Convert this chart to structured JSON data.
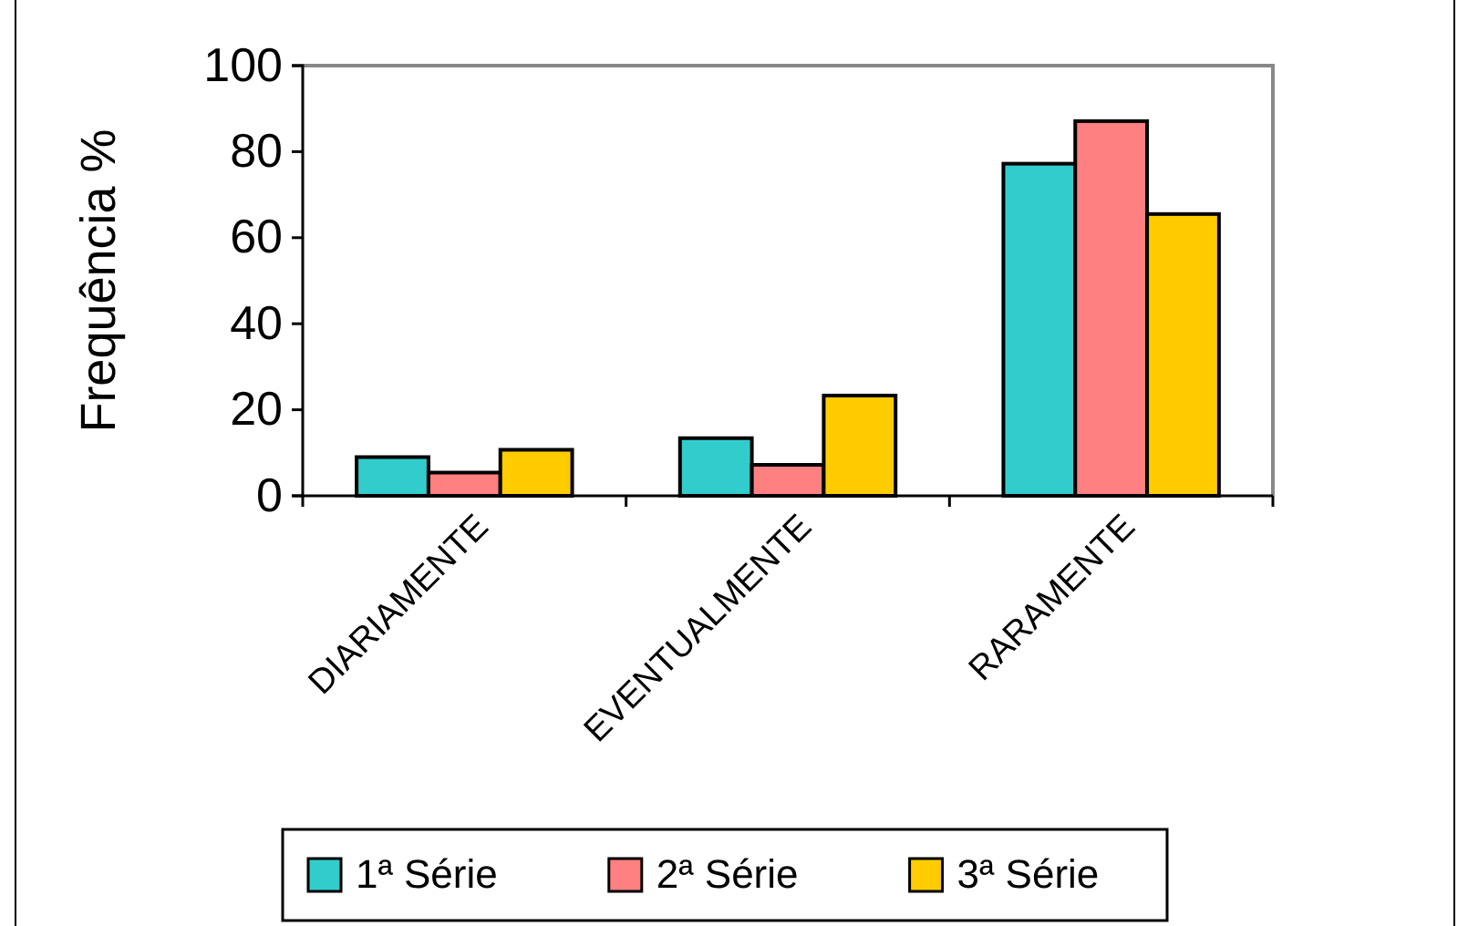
{
  "chart_data": {
    "type": "bar",
    "ylabel": "Frequência %",
    "categories": [
      "DIARIAMENTE",
      "EVENTUALMENTE",
      "RARAMENTE"
    ],
    "series": [
      {
        "name": "1ª Série",
        "color": "#33cccc",
        "values": [
          9.0,
          13.4,
          77.2
        ]
      },
      {
        "name": "2ª Série",
        "color": "#ff8080",
        "values": [
          5.4,
          7.2,
          87.1
        ]
      },
      {
        "name": "3ª Série",
        "color": "#ffcc00",
        "values": [
          10.7,
          23.3,
          65.5
        ]
      }
    ],
    "ylim": [
      0,
      100
    ],
    "yticks": [
      0,
      20,
      40,
      60,
      80,
      100
    ],
    "grid": false,
    "legend": "bottom"
  }
}
